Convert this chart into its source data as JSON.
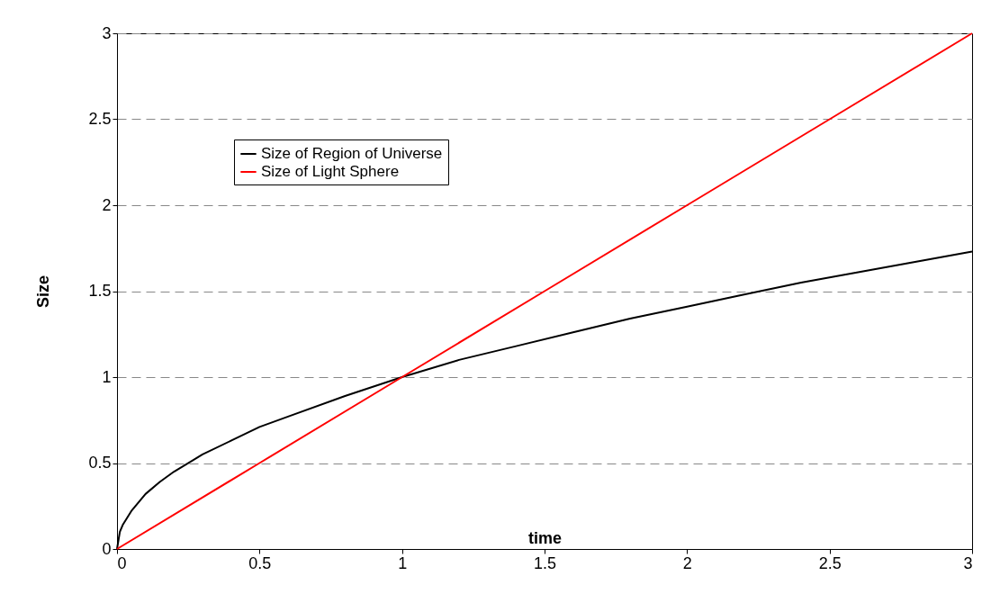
{
  "chart_data": {
    "type": "line",
    "xlabel": "time",
    "ylabel": "Size",
    "xlim": [
      0,
      3
    ],
    "ylim": [
      0,
      3
    ],
    "xticks": [
      0,
      0.5,
      1,
      1.5,
      2,
      2.5,
      3
    ],
    "yticks": [
      0,
      0.5,
      1,
      1.5,
      2,
      2.5,
      3
    ],
    "grid": "y",
    "legend": "top left",
    "marker": "none",
    "line_style": "solid",
    "series": [
      {
        "name": "Size of Region of Universe",
        "color": "#000000",
        "x": [
          0,
          0.01,
          0.02,
          0.05,
          0.1,
          0.15,
          0.2,
          0.3,
          0.4,
          0.5,
          0.6,
          0.8,
          1,
          1.2,
          1.4,
          1.6,
          1.8,
          2,
          2.2,
          2.4,
          2.6,
          2.8,
          3
        ],
        "values": [
          0,
          0.1,
          0.14,
          0.22,
          0.32,
          0.39,
          0.45,
          0.55,
          0.63,
          0.71,
          0.77,
          0.89,
          1,
          1.1,
          1.18,
          1.26,
          1.34,
          1.41,
          1.48,
          1.55,
          1.61,
          1.67,
          1.73
        ]
      },
      {
        "name": "Size of Light Sphere",
        "color": "#ff0000",
        "x": [
          0,
          0.5,
          1,
          1.5,
          2,
          2.5,
          3
        ],
        "values": [
          0,
          0.5,
          1,
          1.5,
          2,
          2.5,
          3
        ]
      }
    ]
  }
}
